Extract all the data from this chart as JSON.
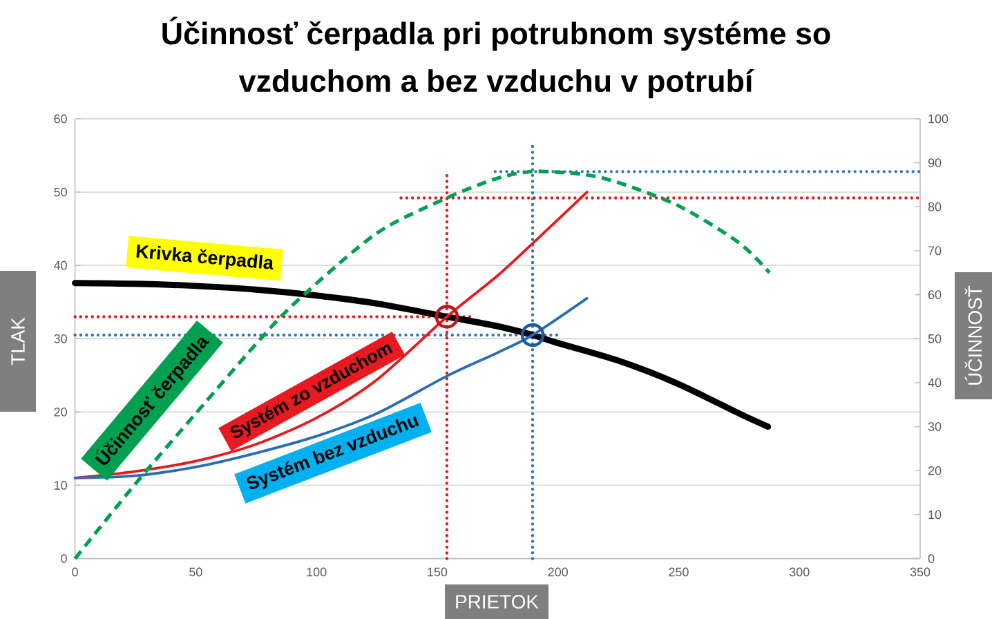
{
  "chart_data": {
    "type": "line",
    "title": "Účinnosť čerpadla pri potrubnom systéme so vzduchom a bez vzduchu v potrubí",
    "xlabel": "PRIETOK",
    "ylabel": "TLAK",
    "y2label": "ÚČINNOSŤ",
    "xlim": [
      0,
      350
    ],
    "xticks": [
      0,
      50,
      100,
      150,
      200,
      250,
      300,
      350
    ],
    "ylim": [
      0,
      60
    ],
    "yticks": [
      0,
      10,
      20,
      30,
      40,
      50,
      60
    ],
    "y2lim": [
      0,
      100
    ],
    "y2ticks": [
      0,
      10,
      20,
      30,
      40,
      50,
      60,
      70,
      80,
      90,
      100
    ],
    "grid": "y",
    "series": [
      {
        "color": "#e31a1c",
        "line_style": "dotted",
        "x": [
          154,
          154
        ],
        "values": [
          0,
          52.8
        ]
      },
      {
        "color": "#e31a1c",
        "line_style": "dotted",
        "x": [
          0,
          165
        ],
        "values": [
          33,
          33
        ]
      },
      {
        "color": "#e31a1c",
        "line_style": "dotted",
        "axis": "y2",
        "x": [
          135,
          350
        ],
        "values": [
          82,
          82
        ]
      },
      {
        "color": "#2e75b6",
        "line_style": "dotted",
        "x": [
          189.5,
          189.5
        ],
        "values": [
          0,
          56.7
        ]
      },
      {
        "color": "#2e75b6",
        "line_style": "dotted",
        "x": [
          0,
          200.5
        ],
        "values": [
          30.5,
          30.5
        ]
      },
      {
        "color": "#2e75b6",
        "line_style": "dotted",
        "axis": "y2",
        "x": [
          174,
          350
        ],
        "values": [
          88,
          88
        ]
      },
      {
        "name": "Krivka čerpadla",
        "color": "#000000",
        "line_style": "solid",
        "x": [
          0,
          25,
          50,
          75,
          100,
          125,
          154,
          175,
          189.5,
          200,
          225,
          250,
          275,
          287
        ],
        "values": [
          37.6,
          37.5,
          37.2,
          36.7,
          35.9,
          34.8,
          33,
          31.7,
          30.5,
          29.4,
          27,
          23.8,
          19.8,
          18
        ]
      },
      {
        "name": "Účinnosť čerpadla",
        "axis": "y2",
        "color": "#00a050",
        "line_style": "dashed",
        "x": [
          0,
          25,
          50,
          78.5,
          93.8,
          125,
          154,
          175,
          190,
          210,
          225,
          250,
          275,
          287.6
        ],
        "values": [
          0,
          17,
          33,
          51,
          59.5,
          74,
          82,
          86.5,
          88,
          87.4,
          85.5,
          80.2,
          71.8,
          65
        ]
      },
      {
        "name": "Systém zo vzduchom",
        "color": "#e8191f",
        "line_style": "solid",
        "x": [
          0,
          25,
          50,
          75,
          100,
          125,
          154,
          175,
          189.5,
          212
        ],
        "values": [
          11,
          11.9,
          13.3,
          15.6,
          19.2,
          24.4,
          33,
          38.6,
          43,
          50
        ]
      },
      {
        "name": "Systém bez vzduchu",
        "color": "#2a6db5",
        "line_style": "solid",
        "x": [
          0,
          25,
          50,
          75,
          100,
          125,
          154,
          175,
          189.5,
          212
        ],
        "values": [
          11,
          11.3,
          12.5,
          14.4,
          16.7,
          19.8,
          24.9,
          28.1,
          30.5,
          35.5
        ]
      },
      {
        "type": "scatter",
        "color": "#c0141c",
        "marker": "circle",
        "x": [
          154
        ],
        "values": [
          33
        ]
      },
      {
        "type": "scatter",
        "color": "#1c5a9c",
        "marker": "circle",
        "x": [
          189.5
        ],
        "values": [
          30.5
        ]
      }
    ]
  }
}
